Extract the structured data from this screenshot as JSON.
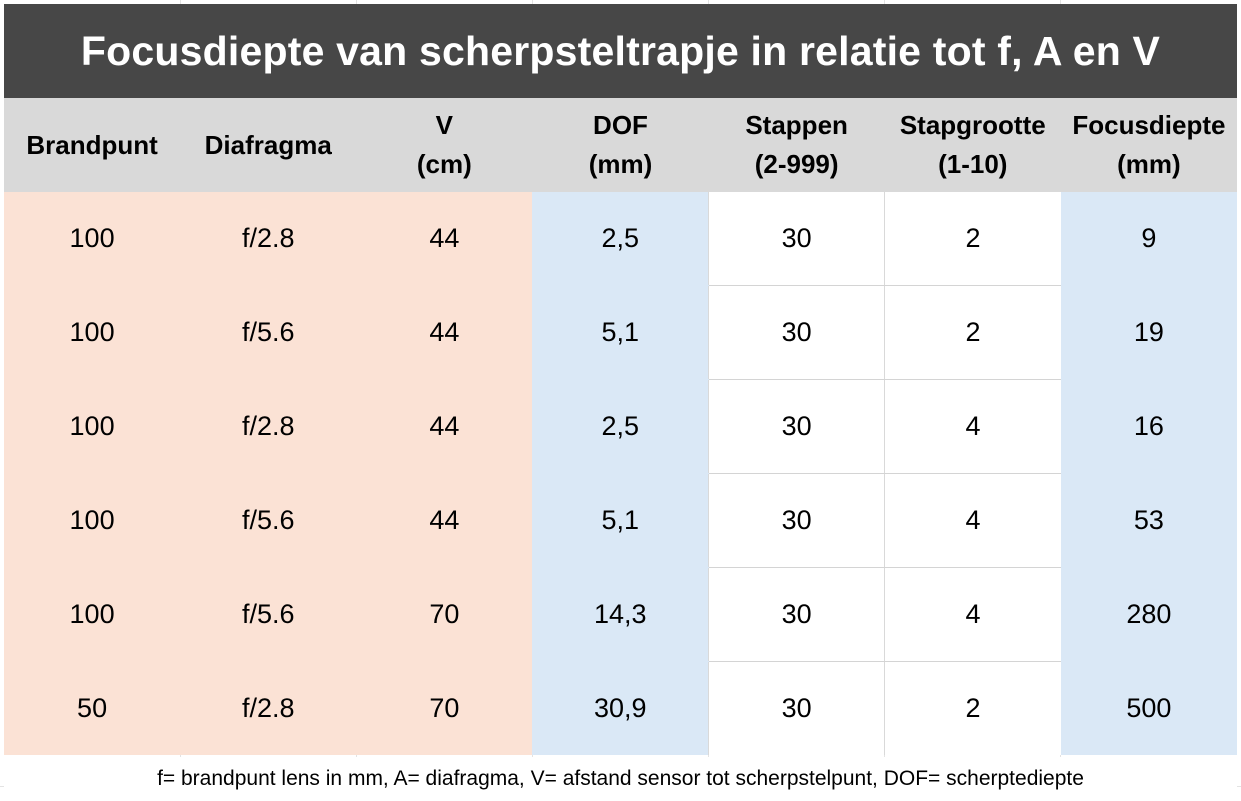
{
  "title": "Focusdiepte van scherpsteltrapje in relatie tot f, A en V",
  "colors": {
    "title_bg": "#474747",
    "header_bg": "#d9d9d9",
    "input_bg": "#fbe2d5",
    "calc_bg": "#dae8f6",
    "plain_bg": "#ffffff"
  },
  "headers": [
    {
      "line1": "Brandpunt",
      "line2": ""
    },
    {
      "line1": "Diafragma",
      "line2": ""
    },
    {
      "line1": "V",
      "line2": "(cm)"
    },
    {
      "line1": "DOF",
      "line2": "(mm)"
    },
    {
      "line1": "Stappen",
      "line2": "(2-999)"
    },
    {
      "line1": "Stapgrootte",
      "line2": "(1-10)"
    },
    {
      "line1": "Focusdiepte",
      "line2": "(mm)"
    }
  ],
  "rows": [
    [
      "100",
      "f/2.8",
      "44",
      "2,5",
      "30",
      "2",
      "9"
    ],
    [
      "100",
      "f/5.6",
      "44",
      "5,1",
      "30",
      "2",
      "19"
    ],
    [
      "100",
      "f/2.8",
      "44",
      "2,5",
      "30",
      "4",
      "16"
    ],
    [
      "100",
      "f/5.6",
      "44",
      "5,1",
      "30",
      "4",
      "53"
    ],
    [
      "100",
      "f/5.6",
      "70",
      "14,3",
      "30",
      "4",
      "280"
    ],
    [
      "50",
      "f/2.8",
      "70",
      "30,9",
      "30",
      "2",
      "500"
    ]
  ],
  "footnote": "f= brandpunt lens in mm, A= diafragma, V= afstand sensor tot scherpstelpunt, DOF= scherptediepte"
}
